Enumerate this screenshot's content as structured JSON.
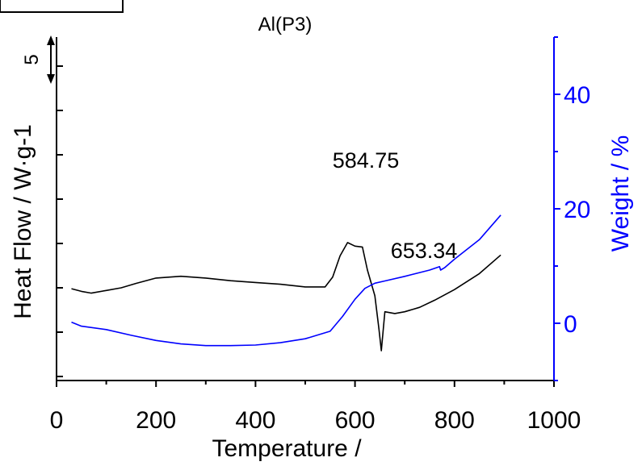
{
  "chart_data": {
    "type": "line",
    "title": "Al(P3)",
    "xlabel": "Temperature  /",
    "ylabel_left": "Heat Flow / W·g-1",
    "ylabel_right": "Weight / %",
    "xlim": [
      0,
      1000
    ],
    "x_ticks": [
      0,
      200,
      400,
      600,
      800,
      1000
    ],
    "x_tick_labels": [
      "0",
      "200",
      "400",
      "600",
      "800",
      "1000"
    ],
    "y_right_lim": [
      -10,
      50
    ],
    "y_right_ticks": [
      0,
      20,
      40
    ],
    "y_right_tick_labels": [
      "0",
      "20",
      "40"
    ],
    "scale_bar_label": "5",
    "colors": {
      "heat_flow": "#000000",
      "weight": "#0000ff",
      "axes": "#000000",
      "right_axis": "#0000ff"
    },
    "series": [
      {
        "axis": "left",
        "color": "#000000",
        "x": [
          30,
          50,
          70,
          100,
          130,
          160,
          200,
          250,
          300,
          350,
          400,
          450,
          500,
          540,
          555,
          570,
          585,
          600,
          615,
          625,
          640,
          648,
          653,
          660,
          680,
          700,
          730,
          760,
          800,
          850,
          893
        ],
        "y": [
          19.9,
          19.6,
          19.4,
          19.7,
          20.0,
          20.5,
          21.1,
          21.3,
          21.1,
          20.8,
          20.6,
          20.4,
          20.1,
          20.1,
          21.2,
          23.6,
          25.1,
          24.7,
          24.6,
          22.0,
          19.1,
          15.4,
          12.9,
          17.3,
          17.1,
          17.3,
          17.8,
          18.6,
          19.8,
          21.6,
          23.7
        ]
      },
      {
        "axis": "right",
        "color": "#0000ff",
        "x": [
          30,
          50,
          100,
          150,
          200,
          250,
          300,
          350,
          400,
          450,
          500,
          550,
          575,
          600,
          620,
          640,
          660,
          700,
          750,
          770,
          772,
          780,
          800,
          850,
          893
        ],
        "y": [
          0.2,
          -0.5,
          -1.1,
          -2.1,
          -3.0,
          -3.6,
          -3.9,
          -3.9,
          -3.8,
          -3.4,
          -2.7,
          -1.4,
          1.2,
          4.2,
          6.1,
          7.0,
          7.4,
          8.2,
          9.3,
          9.9,
          9.3,
          9.7,
          11.2,
          14.6,
          18.9
        ]
      }
    ],
    "annotations": [
      {
        "text": "584.75",
        "x": 584.75,
        "series": 0
      },
      {
        "text": "653.34",
        "x": 653.34,
        "series": 0
      }
    ]
  }
}
